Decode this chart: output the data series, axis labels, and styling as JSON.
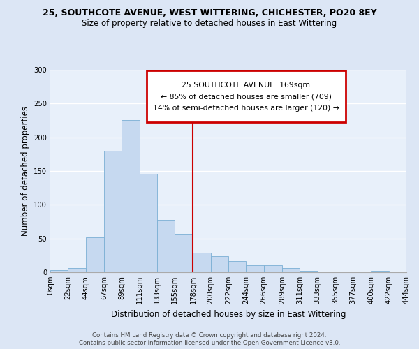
{
  "title": "25, SOUTHCOTE AVENUE, WEST WITTERING, CHICHESTER, PO20 8EY",
  "subtitle": "Size of property relative to detached houses in East Wittering",
  "xlabel": "Distribution of detached houses by size in East Wittering",
  "ylabel": "Number of detached properties",
  "bin_labels": [
    "0sqm",
    "22sqm",
    "44sqm",
    "67sqm",
    "89sqm",
    "111sqm",
    "133sqm",
    "155sqm",
    "178sqm",
    "200sqm",
    "222sqm",
    "244sqm",
    "266sqm",
    "289sqm",
    "311sqm",
    "333sqm",
    "355sqm",
    "377sqm",
    "400sqm",
    "422sqm",
    "444sqm"
  ],
  "bar_heights": [
    3,
    6,
    52,
    180,
    226,
    146,
    78,
    57,
    29,
    24,
    17,
    10,
    10,
    6,
    2,
    0,
    1,
    0,
    2,
    0,
    1
  ],
  "bar_color": "#c6d9f0",
  "bar_edge_color": "#7bafd4",
  "vline_color": "#cc0000",
  "annotation_title": "25 SOUTHCOTE AVENUE: 169sqm",
  "annotation_line1": "← 85% of detached houses are smaller (709)",
  "annotation_line2": "14% of semi-detached houses are larger (120) →",
  "annotation_box_color": "#cc0000",
  "ylim": [
    0,
    300
  ],
  "yticks": [
    0,
    50,
    100,
    150,
    200,
    250,
    300
  ],
  "bin_edges": [
    0,
    22,
    44,
    67,
    89,
    111,
    133,
    155,
    178,
    200,
    222,
    244,
    266,
    289,
    311,
    333,
    355,
    377,
    400,
    422,
    444
  ],
  "footer_line1": "Contains HM Land Registry data © Crown copyright and database right 2024.",
  "footer_line2": "Contains public sector information licensed under the Open Government Licence v3.0.",
  "bg_color": "#dce6f5",
  "plot_bg_color": "#e8f0fa",
  "grid_color": "#ffffff",
  "spine_color": "#aaaaaa",
  "title_fontsize": 9,
  "subtitle_fontsize": 8.5,
  "ylabel_fontsize": 8.5,
  "xlabel_fontsize": 8.5,
  "tick_fontsize": 7.2,
  "footer_fontsize": 6.2
}
